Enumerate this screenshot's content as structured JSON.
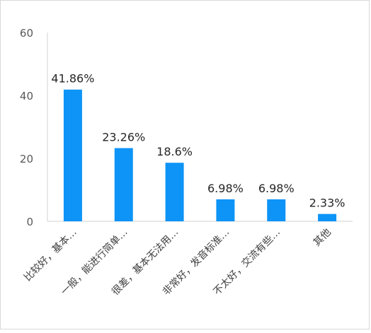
{
  "chart_data": {
    "type": "bar",
    "title": "",
    "xlabel": "",
    "ylabel": "",
    "categories": [
      "比较好，基本…",
      "一般，能进行简单…",
      "很差，基本无法用…",
      "非常好，发音标准…",
      "不太好，交流有些…",
      "其他"
    ],
    "values": [
      41.86,
      23.26,
      18.6,
      6.98,
      6.98,
      2.33
    ],
    "data_labels": [
      "41.86%",
      "23.26%",
      "18.6%",
      "6.98%",
      "6.98%",
      "2.33%"
    ],
    "yticks": [
      "0",
      "20",
      "40",
      "60"
    ],
    "ytick_values": [
      0,
      20,
      40,
      60
    ],
    "ylim": [
      0,
      60
    ],
    "grid": false,
    "legend": "none",
    "bar_color": "#0D94F6"
  }
}
